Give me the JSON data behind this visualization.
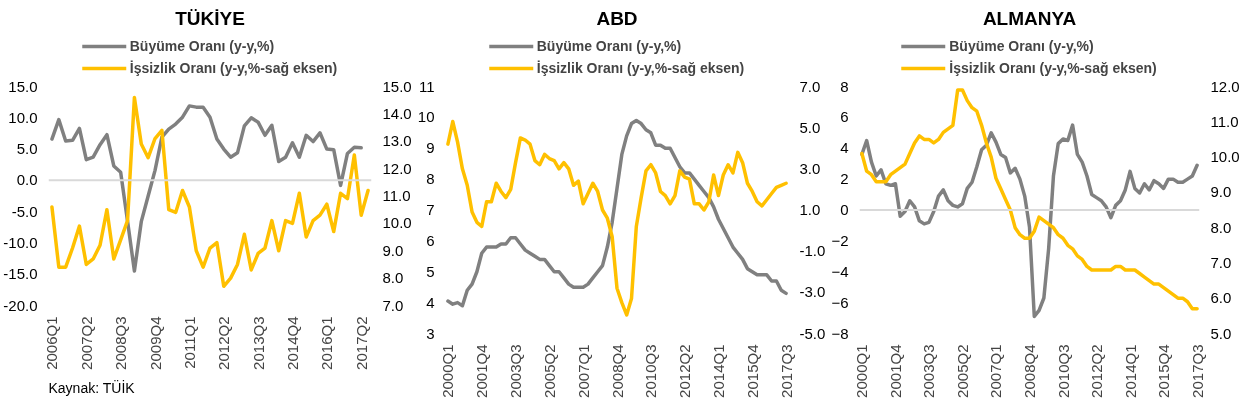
{
  "chart_data": [
    {
      "type": "line",
      "title": "TÜKİYE",
      "legend": "top",
      "categories": [
        "2006Q1",
        null,
        null,
        null,
        null,
        "2007Q2",
        null,
        null,
        null,
        null,
        "2008Q3",
        null,
        null,
        null,
        null,
        "2009Q4",
        null,
        null,
        null,
        null,
        "2011Q1",
        null,
        null,
        null,
        null,
        "2012Q2",
        null,
        null,
        null,
        null,
        "2013Q3",
        null,
        null,
        null,
        null,
        "2014Q4",
        null,
        null,
        null,
        null,
        "2016Q1",
        null,
        null,
        null,
        null,
        "2017Q2",
        null
      ],
      "series": [
        {
          "name": "Büyüme Oranı (y-y,%)",
          "color": "#808080",
          "values": [
            6.6,
            9.7,
            6.3,
            6.4,
            8.3,
            3.3,
            3.7,
            5.7,
            7.3,
            2.3,
            1.3,
            -6.5,
            -14.5,
            -6.6,
            -2.5,
            1.6,
            6.9,
            8.2,
            9.0,
            10.1,
            11.9,
            11.7,
            11.7,
            10.1,
            6.6,
            5.0,
            3.7,
            4.4,
            8.7,
            10.0,
            9.3,
            7.2,
            8.8,
            3.0,
            3.7,
            6.0,
            3.7,
            7.2,
            6.2,
            7.6,
            5.0,
            4.9,
            -0.8,
            4.3,
            5.3,
            5.2,
            null
          ]
        },
        {
          "name": "İşsizlik Oranı (y-y,%-sağ eksen)",
          "color": "#ffc000",
          "axis": "y2",
          "values": [
            10.6,
            8.4,
            8.4,
            9.1,
            9.9,
            8.5,
            8.7,
            9.2,
            10.5,
            8.7,
            9.4,
            10.1,
            14.6,
            12.9,
            12.4,
            13.1,
            13.4,
            10.5,
            10.4,
            11.2,
            10.6,
            9.0,
            8.4,
            9.1,
            9.3,
            7.7,
            8.0,
            8.5,
            9.6,
            8.3,
            8.9,
            9.1,
            10.1,
            9.0,
            10.1,
            10.0,
            11.1,
            9.5,
            10.1,
            10.3,
            10.7,
            9.7,
            11.1,
            10.9,
            12.5,
            10.3,
            11.2
          ]
        }
      ],
      "ylim": [
        -20,
        15
      ],
      "yticks": [
        {
          "value": -20,
          "label": "-20.0"
        },
        {
          "value": -15,
          "label": "-15.0"
        },
        {
          "value": -10,
          "label": "-10.0"
        },
        {
          "value": -5,
          "label": "-5.0"
        },
        {
          "value": 0,
          "label": "0.0"
        },
        {
          "value": 5,
          "label": "5.0"
        },
        {
          "value": 10,
          "label": "10.0"
        },
        {
          "value": 15,
          "label": "15.0"
        }
      ],
      "y2lim": [
        7,
        15
      ],
      "y2ticks": [
        {
          "value": 7,
          "label": "7.0"
        },
        {
          "value": 8,
          "label": "8.0"
        },
        {
          "value": 9,
          "label": "9.0"
        },
        {
          "value": 10,
          "label": "10.0"
        },
        {
          "value": 11,
          "label": "11.0"
        },
        {
          "value": 12,
          "label": "12.0"
        },
        {
          "value": 13,
          "label": "13.0"
        },
        {
          "value": 14,
          "label": "14.0"
        },
        {
          "value": 15,
          "label": "15.0"
        }
      ],
      "ref_lines": [
        {
          "axis": "y",
          "value": 0,
          "color": "#d9d9d9"
        }
      ],
      "annotations": [
        "Kaynak: TÜİK"
      ]
    },
    {
      "type": "line",
      "title": "ABD",
      "legend": "top",
      "categories": [
        "2000Q1",
        null,
        null,
        null,
        null,
        null,
        null,
        "2001Q4",
        null,
        null,
        null,
        null,
        null,
        null,
        "2003Q3",
        null,
        null,
        null,
        null,
        null,
        null,
        "2005Q2",
        null,
        null,
        null,
        null,
        null,
        null,
        "2007Q1",
        null,
        null,
        null,
        null,
        null,
        null,
        "2008Q4",
        null,
        null,
        null,
        null,
        null,
        null,
        "2010Q3",
        null,
        null,
        null,
        null,
        null,
        null,
        "2012Q2",
        null,
        null,
        null,
        null,
        null,
        null,
        "2014Q1",
        null,
        null,
        null,
        null,
        null,
        null,
        "2015Q4",
        null,
        null,
        null,
        null,
        null,
        null,
        "2017Q3"
      ],
      "series": [
        {
          "name": "Büyüme Oranı (y-y,%)",
          "color": "#808080",
          "values": [
            4.05,
            3.95,
            4.0,
            3.9,
            4.4,
            4.6,
            5.0,
            5.6,
            5.8,
            5.8,
            5.8,
            5.9,
            5.9,
            6.1,
            6.1,
            5.9,
            5.7,
            5.6,
            5.5,
            5.4,
            5.4,
            5.2,
            5.0,
            5.0,
            4.8,
            4.6,
            4.5,
            4.5,
            4.5,
            4.6,
            4.8,
            5.0,
            5.2,
            5.8,
            6.6,
            7.7,
            8.8,
            9.4,
            9.8,
            9.9,
            9.8,
            9.6,
            9.5,
            9.1,
            9.1,
            9.0,
            9.0,
            8.7,
            8.4,
            8.2,
            8.2,
            8.0,
            7.8,
            7.6,
            7.4,
            7.1,
            6.7,
            6.4,
            6.1,
            5.8,
            5.6,
            5.4,
            5.1,
            5.0,
            4.9,
            4.9,
            4.9,
            4.7,
            4.7,
            4.4,
            4.3
          ]
        },
        {
          "name": "İşsizlik Oranı (y-y,%-sağ eksen)",
          "color": "#ffc000",
          "axis": "y2",
          "values": [
            4.2,
            5.3,
            4.3,
            3.0,
            2.2,
            0.9,
            0.4,
            0.2,
            1.4,
            1.4,
            2.3,
            1.9,
            1.6,
            2.0,
            3.3,
            4.5,
            4.4,
            4.2,
            3.4,
            3.2,
            3.7,
            3.5,
            3.4,
            3.0,
            3.3,
            3.0,
            2.2,
            2.4,
            1.3,
            1.8,
            2.3,
            1.9,
            1.0,
            0.6,
            -0.3,
            -2.8,
            -3.5,
            -4.1,
            -3.3,
            0.2,
            1.6,
            2.9,
            3.2,
            2.8,
            1.9,
            1.7,
            1.3,
            1.7,
            2.9,
            2.6,
            2.5,
            1.3,
            1.3,
            1.0,
            1.4,
            2.7,
            1.7,
            2.7,
            3.2,
            2.8,
            3.8,
            3.3,
            2.3,
            1.9,
            1.4,
            1.2,
            1.5,
            1.8,
            2.1,
            2.2,
            2.3
          ]
        }
      ],
      "ylim": [
        3,
        11
      ],
      "yticks": [
        3,
        4,
        5,
        6,
        7,
        8,
        9,
        10,
        11
      ],
      "y2lim": [
        -5,
        7
      ],
      "y2ticks": [
        {
          "value": -5,
          "label": "-5.0"
        },
        {
          "value": -3,
          "label": "-3.0"
        },
        {
          "value": -1,
          "label": "-1.0"
        },
        {
          "value": 1,
          "label": "1.0"
        },
        {
          "value": 3,
          "label": "3.0"
        },
        {
          "value": 5,
          "label": "5.0"
        },
        {
          "value": 7,
          "label": "7.0"
        }
      ]
    },
    {
      "type": "line",
      "title": "ALMANYA",
      "legend": "top",
      "categories": [
        "2000Q1",
        null,
        null,
        null,
        null,
        null,
        null,
        "2001Q4",
        null,
        null,
        null,
        null,
        null,
        null,
        "2003Q3",
        null,
        null,
        null,
        null,
        null,
        null,
        "2005Q2",
        null,
        null,
        null,
        null,
        null,
        null,
        "2007Q1",
        null,
        null,
        null,
        null,
        null,
        null,
        "2008Q4",
        null,
        null,
        null,
        null,
        null,
        null,
        "2010Q3",
        null,
        null,
        null,
        null,
        null,
        null,
        "2012Q2",
        null,
        null,
        null,
        null,
        null,
        null,
        "2014Q1",
        null,
        null,
        null,
        null,
        null,
        null,
        "2015Q4",
        null,
        null,
        null,
        null,
        null,
        null,
        "2017Q3"
      ],
      "series": [
        {
          "name": "Büyüme Oranı (y-y,%)",
          "color": "#808080",
          "values": [
            3.6,
            4.5,
            3.1,
            2.2,
            2.6,
            1.7,
            1.6,
            1.7,
            -0.4,
            -0.1,
            0.6,
            0.2,
            -0.7,
            -0.9,
            -0.8,
            -0.1,
            0.9,
            1.3,
            0.6,
            0.3,
            0.2,
            0.4,
            1.4,
            1.8,
            2.8,
            3.9,
            4.2,
            5.0,
            4.4,
            3.6,
            3.4,
            2.4,
            2.7,
            2.0,
            0.9,
            -1.1,
            -6.9,
            -6.5,
            -5.7,
            -2.5,
            2.2,
            4.3,
            4.6,
            4.5,
            5.5,
            3.6,
            3.1,
            2.2,
            1.0,
            0.8,
            0.6,
            0.2,
            -0.5,
            0.3,
            0.6,
            1.3,
            2.5,
            1.4,
            1.1,
            1.7,
            1.3,
            1.9,
            1.7,
            1.4,
            2.0,
            2.0,
            1.8,
            1.8,
            2.0,
            2.2,
            2.9
          ]
        },
        {
          "name": "İşsizlik Oranı (y-y,%-sağ eksen)",
          "color": "#ffc000",
          "axis": "y2",
          "values": [
            10.1,
            9.6,
            9.5,
            9.3,
            9.3,
            9.3,
            9.5,
            9.6,
            9.7,
            9.8,
            10.1,
            10.4,
            10.6,
            10.5,
            10.5,
            10.4,
            10.5,
            10.7,
            10.8,
            10.9,
            11.9,
            11.9,
            11.6,
            11.4,
            11.3,
            10.9,
            10.4,
            10.0,
            9.4,
            9.1,
            8.8,
            8.5,
            8.0,
            7.8,
            7.7,
            7.7,
            7.9,
            8.3,
            8.2,
            8.1,
            8.0,
            7.8,
            7.7,
            7.5,
            7.4,
            7.2,
            7.1,
            6.9,
            6.8,
            6.8,
            6.8,
            6.8,
            6.8,
            6.9,
            6.9,
            6.8,
            6.8,
            6.8,
            6.7,
            6.6,
            6.5,
            6.4,
            6.4,
            6.3,
            6.2,
            6.1,
            6.0,
            6.0,
            5.9,
            5.7,
            5.7
          ]
        }
      ],
      "ylim": [
        -8,
        8
      ],
      "yticks": [
        -8,
        -6,
        -4,
        -2,
        0,
        2,
        4,
        6,
        8
      ],
      "y2lim": [
        5,
        12
      ],
      "y2ticks": [
        {
          "value": 5,
          "label": "5.0"
        },
        {
          "value": 6,
          "label": "6.0"
        },
        {
          "value": 7,
          "label": "7.0"
        },
        {
          "value": 8,
          "label": "8.0"
        },
        {
          "value": 9,
          "label": "9.0"
        },
        {
          "value": 10,
          "label": "10.0"
        },
        {
          "value": 11,
          "label": "11.0"
        },
        {
          "value": 12,
          "label": "12.0"
        }
      ],
      "ref_lines": [
        {
          "axis": "y",
          "value": 0,
          "color": "#d9d9d9"
        }
      ]
    }
  ]
}
